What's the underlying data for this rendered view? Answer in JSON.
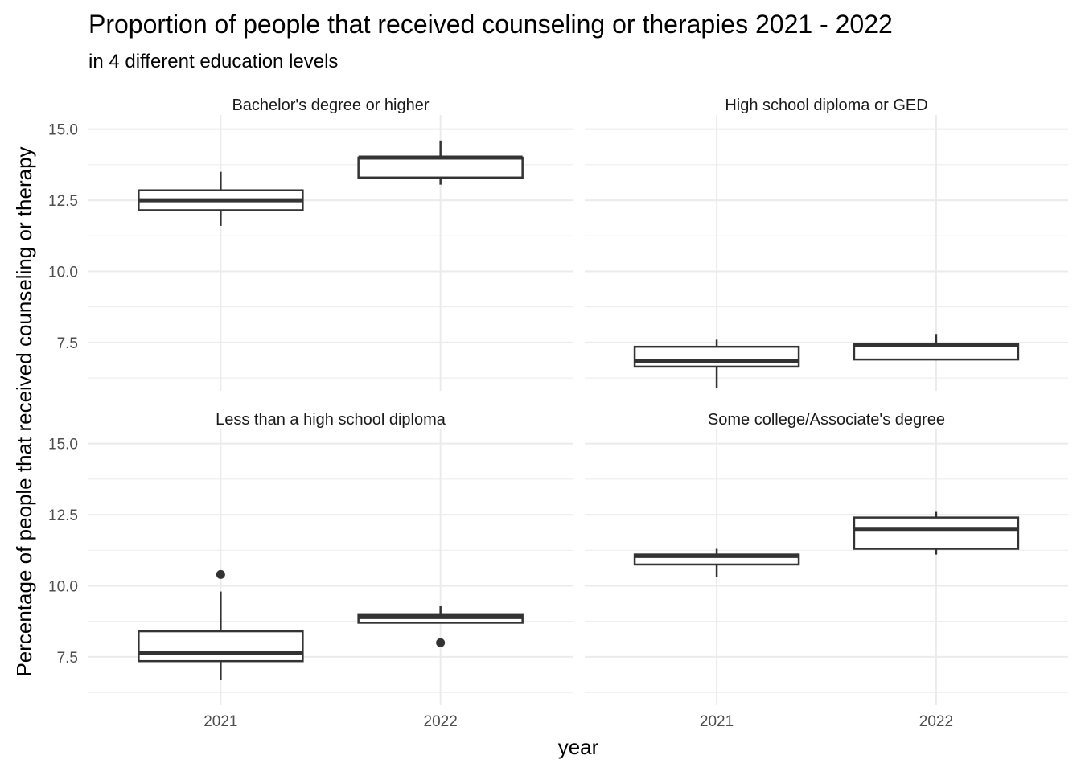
{
  "chart_data": {
    "type": "boxplot",
    "title": "Proportion of people that received counseling or therapies 2021 - 2022",
    "subtitle": "in 4 different education levels",
    "xlabel": "year",
    "ylabel": "Percentage of people that received counseling or therapy",
    "categories": [
      "2021",
      "2022"
    ],
    "ylim": [
      5.8,
      15.5
    ],
    "y_ticks": [
      7.5,
      10.0,
      12.5,
      15.0
    ],
    "y_tick_labels": [
      "7.5",
      "10.0",
      "12.5",
      "15.0"
    ],
    "grid": true,
    "layout": "facet 2x2",
    "colors": {
      "box_line": "#333333",
      "box_fill": "#ffffff",
      "grid": "#ebebeb"
    },
    "facets": [
      {
        "label": "Bachelor's degree or higher",
        "boxes": [
          {
            "x": "2021",
            "min": 11.6,
            "q1": 12.15,
            "median": 12.5,
            "q3": 12.85,
            "max": 13.5,
            "outliers": []
          },
          {
            "x": "2022",
            "min": 13.05,
            "q1": 13.3,
            "median": 14.0,
            "q3": 14.0,
            "max": 14.6,
            "outliers": []
          }
        ]
      },
      {
        "label": "High school diploma or GED",
        "boxes": [
          {
            "x": "2021",
            "min": 5.9,
            "q1": 6.65,
            "median": 6.85,
            "q3": 7.35,
            "max": 7.6,
            "outliers": []
          },
          {
            "x": "2022",
            "min": 6.9,
            "q1": 6.9,
            "median": 7.4,
            "q3": 7.45,
            "max": 7.8,
            "outliers": []
          }
        ]
      },
      {
        "label": "Less than a high school diploma",
        "boxes": [
          {
            "x": "2021",
            "min": 6.7,
            "q1": 7.35,
            "median": 7.65,
            "q3": 8.4,
            "max": 9.8,
            "outliers": [
              10.4
            ]
          },
          {
            "x": "2022",
            "min": 8.7,
            "q1": 8.7,
            "median": 8.9,
            "q3": 9.0,
            "max": 9.3,
            "outliers": [
              8.0
            ]
          }
        ]
      },
      {
        "label": "Some college/Associate's degree",
        "boxes": [
          {
            "x": "2021",
            "min": 10.3,
            "q1": 10.75,
            "median": 11.05,
            "q3": 11.1,
            "max": 11.3,
            "outliers": []
          },
          {
            "x": "2022",
            "min": 11.1,
            "q1": 11.3,
            "median": 12.0,
            "q3": 12.4,
            "max": 12.6,
            "outliers": []
          }
        ]
      }
    ]
  }
}
